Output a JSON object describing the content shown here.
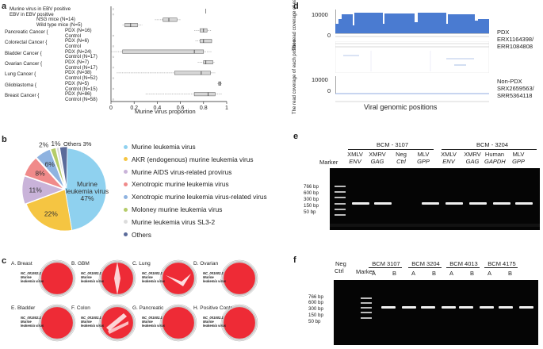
{
  "panels": {
    "a": "a",
    "b": "b",
    "c": "c",
    "d": "d",
    "e": "e",
    "f": "f"
  },
  "panel_a": {
    "xlabel": "Murine virus proportion",
    "ticks": [
      "0",
      "0.2",
      "0.4",
      "0.6",
      "0.8",
      "1"
    ],
    "rows": [
      {
        "group": "Murine virus in EBV positive",
        "sub": ""
      },
      {
        "group": "EBV in EBV positive",
        "sub": ""
      },
      {
        "group": "NSG mice (N=14)",
        "sub": ""
      },
      {
        "group": "Wild type mice (N=5)",
        "sub": ""
      },
      {
        "group": "Pancreatic Cancer",
        "pdx": "PDX (N=16)",
        "ctrl": "Control"
      },
      {
        "group": "Colorectal Cancer",
        "pdx": "PDX (N=6)",
        "ctrl": "Control"
      },
      {
        "group": "Bladder Cancer",
        "pdx": "PDX (N=24)",
        "ctrl": "Control (N=17)"
      },
      {
        "group": "Ovarian Cancer",
        "pdx": "PDX (N=7)",
        "ctrl": "Control (N=17)"
      },
      {
        "group": "Lung Cancer",
        "pdx": "PDX (N=38)",
        "ctrl": "Control (N=52)"
      },
      {
        "group": "Glioblastoma",
        "pdx": "PDX (N=5)",
        "ctrl": "Control (N=15)"
      },
      {
        "group": "Breast Cancer",
        "pdx": "PDX (N=86)",
        "ctrl": "Control (N=58)"
      }
    ]
  },
  "chart_data": [
    {
      "type": "box",
      "xlabel": "Murine virus proportion",
      "xlim": [
        0,
        1
      ],
      "categories": [
        "Murine virus in EBV positive",
        "EBV in EBV positive",
        "NSG mice (N=14)",
        "Wild type mice (N=5)",
        "Pancreatic PDX (N=16)",
        "Pancreatic Control",
        "Colorectal PDX (N=6)",
        "Colorectal Control",
        "Bladder PDX (N=24)",
        "Bladder Control (N=17)",
        "Ovarian PDX (N=7)",
        "Ovarian Control (N=17)",
        "Lung PDX (N=38)",
        "Lung Control (N=52)",
        "Glioblastoma PDX (N=5)",
        "Glioblastoma Control (N=15)",
        "Breast PDX (N=86)",
        "Breast Control (N=58)"
      ],
      "boxes": [
        {
          "q1": 0.0,
          "med": 0.0,
          "q3": 0.0,
          "lo": 0.0,
          "hi": 0.0
        },
        {
          "q1": 0.0,
          "med": 0.0,
          "q3": 0.0,
          "lo": 0.0,
          "hi": 0.0
        },
        {
          "q1": 0.45,
          "med": 0.5,
          "q3": 0.57,
          "lo": 0.38,
          "hi": 0.6
        },
        {
          "q1": 0.12,
          "med": 0.17,
          "q3": 0.23,
          "lo": 0.1,
          "hi": 0.27
        },
        {
          "q1": 0.77,
          "med": 0.8,
          "q3": 0.83,
          "lo": 0.72,
          "hi": 0.87
        },
        {
          "q1": 0.0,
          "med": 0.0,
          "q3": 0.0,
          "lo": 0.0,
          "hi": 0.0
        },
        {
          "q1": 0.77,
          "med": 0.8,
          "q3": 0.87,
          "lo": 0.73,
          "hi": 0.88
        },
        {
          "q1": 0.0,
          "med": 0.0,
          "q3": 0.0,
          "lo": 0.0,
          "hi": 0.0
        },
        {
          "q1": 0.1,
          "med": 0.72,
          "q3": 0.8,
          "lo": 0.0,
          "hi": 0.87
        },
        {
          "q1": 0.0,
          "med": 0.0,
          "q3": 0.0,
          "lo": 0.0,
          "hi": 0.0
        },
        {
          "q1": 0.8,
          "med": 0.82,
          "q3": 0.88,
          "lo": 0.75,
          "hi": 0.9
        },
        {
          "q1": 0.0,
          "med": 0.0,
          "q3": 0.0,
          "lo": 0.0,
          "hi": 0.0
        },
        {
          "q1": 0.55,
          "med": 0.78,
          "q3": 0.86,
          "lo": 0.05,
          "hi": 0.9
        },
        {
          "q1": 0.0,
          "med": 0.0,
          "q3": 0.0,
          "lo": 0.0,
          "hi": 0.0
        },
        {
          "q1": 0.93,
          "med": 0.94,
          "q3": 0.95,
          "lo": 0.92,
          "hi": 0.96
        },
        {
          "q1": 0.0,
          "med": 0.0,
          "q3": 0.0,
          "lo": 0.0,
          "hi": 0.0
        },
        {
          "q1": 0.72,
          "med": 0.84,
          "q3": 0.9,
          "lo": 0.3,
          "hi": 0.96
        },
        {
          "q1": 0.0,
          "med": 0.0,
          "q3": 0.0,
          "lo": 0.0,
          "hi": 0.0
        }
      ]
    },
    {
      "type": "pie",
      "center_label": "Murine leukemia virus 47%",
      "slices": [
        {
          "name": "Murine leukemia virus",
          "value": 47,
          "label": "47%",
          "color": "#8fd1ef"
        },
        {
          "name": "AKR (endogenous) murine leukemia virus",
          "value": 22,
          "label": "22%",
          "color": "#f5c542"
        },
        {
          "name": "Murine AIDS virus-related provirus",
          "value": 11,
          "label": "11%",
          "color": "#c9b3d9"
        },
        {
          "name": "Xenotropic murine leukemia virus",
          "value": 8,
          "label": "8%",
          "color": "#f08a8a"
        },
        {
          "name": "Xenotropic murine leukemia virus-related virus",
          "value": 6,
          "label": "6%",
          "color": "#8fb3e0"
        },
        {
          "name": "Moloney murine leukemia virus",
          "value": 2,
          "label": "2%",
          "color": "#b5cc6a"
        },
        {
          "name": "Murine leukemia virus SL3-2",
          "value": 1,
          "label": "1%",
          "color": "#dcdcdc"
        },
        {
          "name": "Others",
          "value": 3,
          "label": "Others 3%",
          "color": "#5b6b9a"
        }
      ]
    }
  ],
  "panel_c": {
    "circles": [
      {
        "title": "A. Breast",
        "inner": "NC_001502.1 Murine leukemia virus"
      },
      {
        "title": "B. GBM",
        "inner": "NC_001502.1 Murine leukemia virus"
      },
      {
        "title": "C. Lung",
        "inner": "NC_001502.1 Murine leukemia virus"
      },
      {
        "title": "D. Ovarian",
        "inner": "NC_001502.1 Murine leukemia virus"
      },
      {
        "title": "E. Bladder",
        "inner": "NC_001502.1 Murine leukemia virus"
      },
      {
        "title": "F. Colon",
        "inner": "NC_001502.1 Murine leukemia virus"
      },
      {
        "title": "G. Pancreatic",
        "inner": "NC_001502.1 Murine leukemia virus"
      },
      {
        "title": "H. Positive Control",
        "inner": "NC_001502.1 Murine leukemia virus"
      }
    ]
  },
  "panel_d": {
    "ylabel": "The read coverage of each position",
    "yticks_top": [
      "10000",
      "0"
    ],
    "yticks_bottom": [
      "10000",
      "0"
    ],
    "top_label_1": "PDX",
    "top_label_2": "ERX1164398/",
    "top_label_3": "ERR1084808",
    "bottom_label_1": "Non-PDX",
    "bottom_label_2": "SRX2659563/",
    "bottom_label_3": "SRR5364118",
    "xlabel": "Viral genomic positions"
  },
  "panel_e": {
    "group1": "BCM - 3107",
    "group2": "BCM - 3204",
    "marker": "Marker",
    "lanes": [
      {
        "l1": "XMLV",
        "l2": "ENV"
      },
      {
        "l1": "XMRV",
        "l2": "GAG"
      },
      {
        "l1": "Neg",
        "l2": "Ctrl"
      },
      {
        "l1": "MLV",
        "l2": "GPP"
      },
      {
        "l1": "XMLV",
        "l2": "ENV"
      },
      {
        "l1": "XMRV",
        "l2": "GAG"
      },
      {
        "l1": "Human",
        "l2": "GAPDH"
      },
      {
        "l1": "MLV",
        "l2": "GPP"
      }
    ],
    "ladder": [
      "766 bp",
      "600 bp",
      "300 bp",
      "150 bp",
      "50 bp"
    ]
  },
  "panel_f": {
    "neg1": "Neg",
    "neg2": "Ctrl",
    "marker": "Marker",
    "groups": [
      "BCM 3107",
      "BCM 3204",
      "BCM 4013",
      "BCM 4175"
    ],
    "sub": [
      "A",
      "B"
    ],
    "ladder": [
      "766 bp",
      "600 bp",
      "300 bp",
      "150 bp",
      "50 bp"
    ]
  }
}
